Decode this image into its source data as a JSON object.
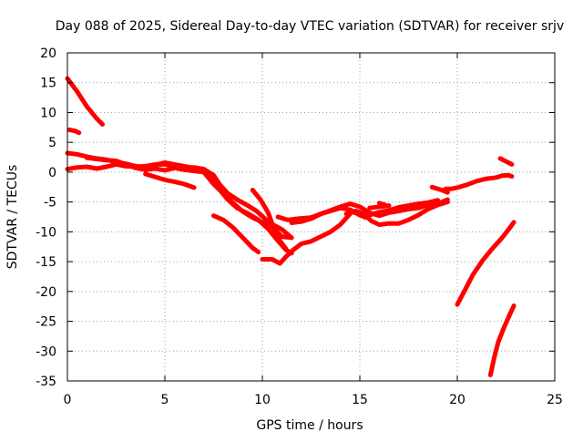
{
  "chart_data": {
    "type": "line",
    "title": "Day 088 of 2025, Sidereal Day-to-day VTEC variation (SDTVAR) for receiver srjv",
    "xlabel": "GPS time / hours",
    "ylabel": "SDTVAR / TECUs",
    "xlim": [
      0,
      25
    ],
    "ylim": [
      -35,
      20
    ],
    "xticks": [
      0,
      5,
      10,
      15,
      20,
      25
    ],
    "yticks": [
      20,
      15,
      10,
      5,
      0,
      -5,
      -10,
      -15,
      -20,
      -25,
      -30,
      -35
    ],
    "grid": true,
    "color": "#ff0000",
    "series": [
      {
        "points": [
          [
            0.0,
            15.7
          ],
          [
            0.5,
            13.5
          ],
          [
            1.0,
            11.0
          ],
          [
            1.5,
            9.0
          ],
          [
            1.8,
            8.0
          ]
        ]
      },
      {
        "points": [
          [
            0.1,
            7.1
          ],
          [
            0.4,
            6.9
          ],
          [
            0.6,
            6.6
          ]
        ]
      },
      {
        "points": [
          [
            0.0,
            3.2
          ],
          [
            0.5,
            3.0
          ],
          [
            1.0,
            2.6
          ],
          [
            1.5,
            2.3
          ],
          [
            2.0,
            2.1
          ],
          [
            2.5,
            1.7
          ],
          [
            3.0,
            1.4
          ],
          [
            3.5,
            1.0
          ],
          [
            4.0,
            0.8
          ],
          [
            4.5,
            1.2
          ],
          [
            5.0,
            1.6
          ],
          [
            5.5,
            1.3
          ],
          [
            6.0,
            1.0
          ],
          [
            6.5,
            0.7
          ],
          [
            7.0,
            0.5
          ],
          [
            7.5,
            -0.5
          ],
          [
            7.8,
            -2.0
          ],
          [
            8.2,
            -3.5
          ],
          [
            8.7,
            -4.6
          ],
          [
            9.2,
            -5.5
          ],
          [
            9.7,
            -6.5
          ],
          [
            10.2,
            -8.0
          ],
          [
            10.6,
            -9.5
          ],
          [
            11.0,
            -10.8
          ],
          [
            11.5,
            -11.0
          ]
        ]
      },
      {
        "points": [
          [
            0.0,
            0.5
          ],
          [
            0.5,
            0.8
          ],
          [
            1.0,
            0.9
          ],
          [
            1.5,
            0.6
          ],
          [
            2.0,
            0.9
          ],
          [
            2.5,
            1.3
          ],
          [
            3.0,
            1.0
          ],
          [
            3.5,
            0.9
          ],
          [
            4.0,
            1.0
          ],
          [
            4.5,
            1.3
          ],
          [
            5.0,
            1.3
          ],
          [
            5.5,
            1.0
          ],
          [
            6.0,
            0.7
          ],
          [
            6.5,
            0.8
          ],
          [
            7.0,
            0.5
          ],
          [
            7.3,
            -0.5
          ],
          [
            7.7,
            -2.5
          ],
          [
            8.2,
            -4.5
          ],
          [
            8.7,
            -6.0
          ],
          [
            9.3,
            -7.0
          ],
          [
            9.8,
            -8.0
          ],
          [
            10.3,
            -9.5
          ],
          [
            10.8,
            -11.5
          ],
          [
            11.2,
            -13.0
          ],
          [
            11.5,
            -13.6
          ]
        ]
      },
      {
        "points": [
          [
            1.0,
            2.4
          ],
          [
            1.5,
            2.2
          ],
          [
            2.0,
            2.0
          ],
          [
            2.5,
            1.9
          ],
          [
            3.0,
            1.3
          ],
          [
            3.5,
            0.7
          ],
          [
            4.0,
            0.4
          ],
          [
            4.5,
            0.6
          ],
          [
            5.0,
            0.3
          ],
          [
            5.5,
            0.7
          ],
          [
            6.0,
            0.4
          ],
          [
            6.5,
            0.2
          ],
          [
            7.0,
            0.0
          ],
          [
            7.5,
            -2.0
          ],
          [
            8.0,
            -3.6
          ],
          [
            8.5,
            -5.2
          ],
          [
            9.0,
            -6.6
          ],
          [
            9.5,
            -7.6
          ],
          [
            10.0,
            -8.4
          ],
          [
            10.5,
            -8.7
          ],
          [
            11.0,
            -9.6
          ],
          [
            11.5,
            -11.0
          ]
        ]
      },
      {
        "points": [
          [
            4.0,
            -0.3
          ],
          [
            4.5,
            -0.8
          ],
          [
            5.0,
            -1.3
          ],
          [
            5.5,
            -1.6
          ],
          [
            6.0,
            -2.0
          ],
          [
            6.5,
            -2.6
          ]
        ]
      },
      {
        "points": [
          [
            7.5,
            -7.3
          ],
          [
            8.0,
            -8.0
          ],
          [
            8.5,
            -9.3
          ],
          [
            9.0,
            -11.0
          ],
          [
            9.5,
            -12.7
          ],
          [
            9.8,
            -13.4
          ]
        ]
      },
      {
        "points": [
          [
            9.5,
            -3.0
          ],
          [
            9.9,
            -4.6
          ],
          [
            10.3,
            -6.8
          ],
          [
            10.6,
            -9.5
          ],
          [
            10.9,
            -11.5
          ],
          [
            11.2,
            -12.8
          ]
        ]
      },
      {
        "points": [
          [
            10.0,
            -14.6
          ],
          [
            10.5,
            -14.6
          ],
          [
            10.9,
            -15.3
          ],
          [
            11.2,
            -14.2
          ],
          [
            11.6,
            -13.0
          ],
          [
            12.0,
            -12.0
          ],
          [
            12.5,
            -11.6
          ],
          [
            13.0,
            -10.8
          ],
          [
            13.5,
            -10.0
          ],
          [
            14.0,
            -8.8
          ],
          [
            14.5,
            -7.0
          ]
        ]
      },
      {
        "points": [
          [
            11.5,
            -8.5
          ],
          [
            12.0,
            -8.3
          ],
          [
            12.5,
            -7.8
          ],
          [
            13.0,
            -7.0
          ],
          [
            13.5,
            -6.4
          ],
          [
            14.0,
            -5.8
          ],
          [
            14.5,
            -5.3
          ],
          [
            15.0,
            -5.8
          ],
          [
            15.5,
            -6.8
          ],
          [
            16.0,
            -7.3
          ],
          [
            16.5,
            -6.8
          ],
          [
            17.0,
            -6.5
          ],
          [
            17.5,
            -6.2
          ],
          [
            18.0,
            -6.0
          ],
          [
            18.5,
            -5.5
          ],
          [
            19.0,
            -5.3
          ],
          [
            19.5,
            -4.6
          ]
        ]
      },
      {
        "points": [
          [
            10.8,
            -7.5
          ],
          [
            11.3,
            -8.0
          ],
          [
            11.8,
            -7.8
          ],
          [
            12.5,
            -7.6
          ],
          [
            13.0,
            -7.0
          ],
          [
            13.5,
            -6.5
          ],
          [
            14.0,
            -6.0
          ],
          [
            14.5,
            -6.3
          ],
          [
            15.0,
            -7.2
          ],
          [
            15.3,
            -7.6
          ]
        ]
      },
      {
        "points": [
          [
            14.3,
            -7.0
          ],
          [
            14.8,
            -6.5
          ],
          [
            15.2,
            -7.0
          ],
          [
            15.6,
            -8.2
          ],
          [
            16.0,
            -8.8
          ],
          [
            16.5,
            -8.6
          ],
          [
            17.0,
            -8.6
          ],
          [
            17.5,
            -8.0
          ],
          [
            18.0,
            -7.2
          ],
          [
            18.5,
            -6.2
          ],
          [
            19.0,
            -5.5
          ],
          [
            19.5,
            -5.0
          ]
        ]
      },
      {
        "points": [
          [
            14.5,
            -6.6
          ],
          [
            15.0,
            -7.0
          ],
          [
            15.5,
            -7.2
          ],
          [
            16.0,
            -6.7
          ],
          [
            16.5,
            -6.4
          ],
          [
            17.0,
            -5.9
          ],
          [
            17.5,
            -5.6
          ],
          [
            18.0,
            -5.3
          ],
          [
            18.5,
            -5.1
          ],
          [
            19.0,
            -4.7
          ]
        ]
      },
      {
        "points": [
          [
            15.5,
            -6.0
          ],
          [
            16.0,
            -5.8
          ],
          [
            16.5,
            -5.6
          ]
        ]
      },
      {
        "points": [
          [
            16.0,
            -5.2
          ],
          [
            16.3,
            -5.5
          ]
        ]
      },
      {
        "points": [
          [
            18.7,
            -2.5
          ],
          [
            19.2,
            -3.0
          ],
          [
            19.5,
            -3.4
          ]
        ]
      },
      {
        "points": [
          [
            19.4,
            -2.8
          ],
          [
            19.7,
            -2.8
          ],
          [
            20.0,
            -2.6
          ],
          [
            20.5,
            -2.1
          ],
          [
            21.0,
            -1.5
          ],
          [
            21.5,
            -1.1
          ],
          [
            22.0,
            -0.9
          ],
          [
            22.3,
            -0.6
          ],
          [
            22.6,
            -0.5
          ],
          [
            22.8,
            -0.7
          ]
        ]
      },
      {
        "points": [
          [
            22.2,
            2.3
          ],
          [
            22.5,
            1.8
          ],
          [
            22.8,
            1.3
          ]
        ]
      },
      {
        "points": [
          [
            20.0,
            -22.2
          ],
          [
            20.4,
            -19.7
          ],
          [
            20.8,
            -17.2
          ],
          [
            21.3,
            -14.8
          ],
          [
            21.8,
            -12.8
          ],
          [
            22.3,
            -11.0
          ],
          [
            22.7,
            -9.3
          ],
          [
            22.9,
            -8.4
          ]
        ]
      },
      {
        "points": [
          [
            21.7,
            -34.0
          ],
          [
            21.9,
            -31.0
          ],
          [
            22.1,
            -28.5
          ],
          [
            22.4,
            -26.0
          ],
          [
            22.7,
            -23.8
          ],
          [
            22.9,
            -22.4
          ]
        ]
      }
    ]
  }
}
